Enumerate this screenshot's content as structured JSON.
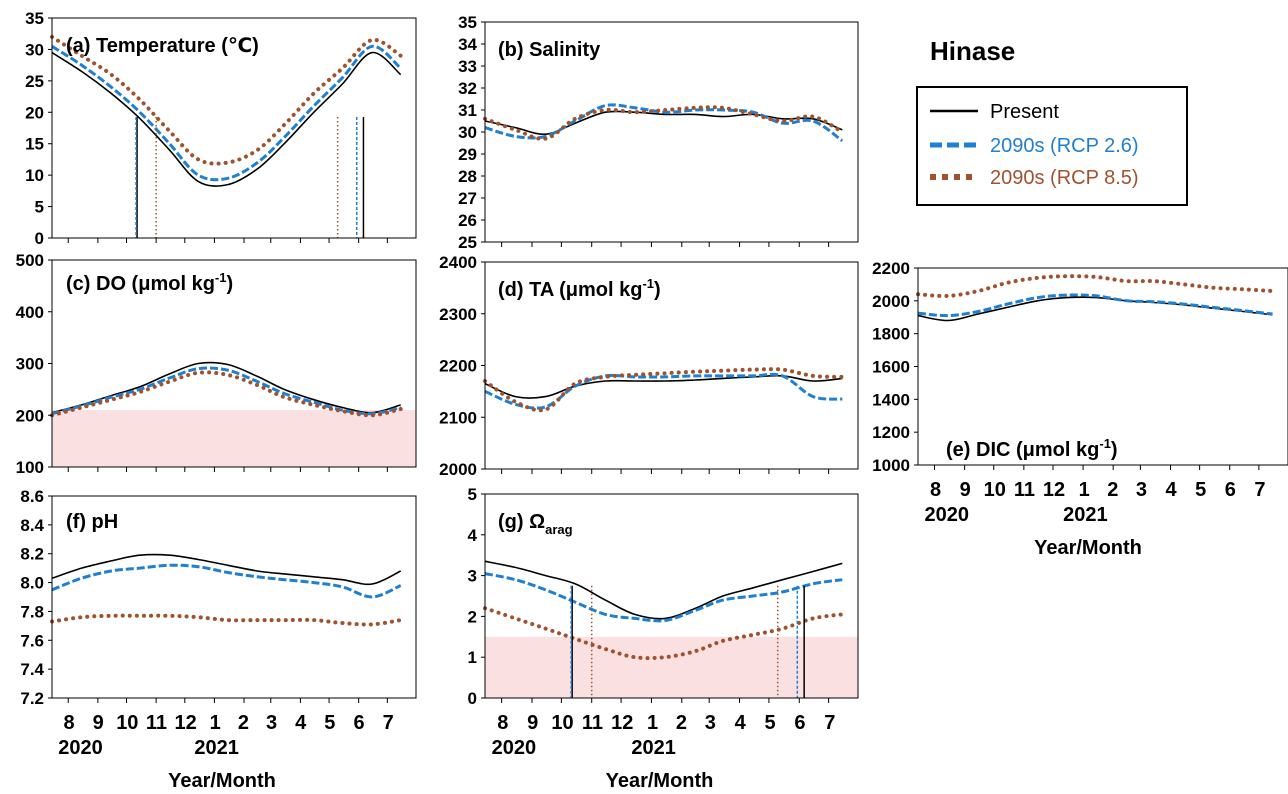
{
  "site_title": "Hinase",
  "legend": [
    {
      "label": "Present",
      "color": "#000000",
      "style": "solid"
    },
    {
      "label": "2090s (RCP 2.6)",
      "color": "#1f7fd0",
      "style": "dashed"
    },
    {
      "label": "2090s (RCP 8.5)",
      "color": "#a0522d",
      "style": "dotted"
    }
  ],
  "colors": {
    "present": "#000000",
    "rcp26": "#1f7fd0",
    "rcp85": "#a0522d",
    "threshold_fill": "#fbe0e2"
  },
  "x_axis": {
    "month_ticks": [
      "8",
      "9",
      "10",
      "11",
      "12",
      "1",
      "2",
      "3",
      "4",
      "5",
      "6",
      "7"
    ],
    "year_labels": [
      "2020",
      "2021"
    ],
    "xlabel": "Year/Month"
  },
  "chart_data": [
    {
      "id": "a",
      "type": "line",
      "title": "(a) Temperature (℃)",
      "ylim": [
        0,
        35
      ],
      "yticks": [
        0,
        5,
        10,
        15,
        20,
        25,
        30,
        35
      ],
      "x": [
        "2020-07-15",
        "2020-08-15",
        "2020-09-15",
        "2020-10-15",
        "2020-11-15",
        "2020-12-15",
        "2021-01-15",
        "2021-02-15",
        "2021-03-15",
        "2021-04-15",
        "2021-05-15",
        "2021-06-15",
        "2021-07-15"
      ],
      "series": [
        {
          "name": "Present",
          "values": [
            29.5,
            26.5,
            23,
            19,
            14,
            9,
            8.5,
            11,
            15,
            20,
            24.5,
            29.5,
            26
          ]
        },
        {
          "name": "2090s (RCP 2.6)",
          "values": [
            30.5,
            27.5,
            24,
            20,
            15,
            10,
            9.5,
            12,
            16,
            21,
            25.5,
            30.5,
            27
          ]
        },
        {
          "name": "2090s (RCP 8.5)",
          "values": [
            32,
            29,
            26,
            22,
            17,
            12.5,
            12,
            14,
            18,
            23,
            27,
            31.5,
            29
          ]
        }
      ],
      "vlines": [
        {
          "series": "Present",
          "date": "2020-10-12"
        },
        {
          "series": "2090s (RCP 2.6)",
          "date": "2020-10-11"
        },
        {
          "series": "2090s (RCP 8.5)",
          "date": "2020-11-01"
        },
        {
          "series": "2090s (RCP 8.5)",
          "date": "2021-05-10"
        },
        {
          "series": "2090s (RCP 2.6)",
          "date": "2021-05-30"
        },
        {
          "series": "Present",
          "date": "2021-06-06"
        }
      ]
    },
    {
      "id": "b",
      "type": "line",
      "title": "(b) Salinity",
      "ylim": [
        25,
        35
      ],
      "yticks": [
        25,
        26,
        27,
        28,
        29,
        30,
        31,
        32,
        33,
        34,
        35
      ],
      "x": [
        "2020-07-15",
        "2020-08-15",
        "2020-09-15",
        "2020-10-15",
        "2020-11-15",
        "2020-12-15",
        "2021-01-15",
        "2021-02-15",
        "2021-03-15",
        "2021-04-15",
        "2021-05-15",
        "2021-06-15",
        "2021-07-15"
      ],
      "series": [
        {
          "name": "Present",
          "values": [
            30.5,
            30.2,
            29.9,
            30.4,
            30.9,
            30.9,
            30.8,
            30.8,
            30.7,
            30.8,
            30.6,
            30.6,
            30.1
          ]
        },
        {
          "name": "2090s (RCP 2.6)",
          "values": [
            30.2,
            29.8,
            29.8,
            30.5,
            31.2,
            31.1,
            30.9,
            31.0,
            31.0,
            30.9,
            30.4,
            30.5,
            29.6
          ]
        },
        {
          "name": "2090s (RCP 8.5)",
          "values": [
            30.6,
            30.1,
            29.7,
            30.6,
            31.0,
            30.9,
            31.0,
            31.1,
            31.1,
            30.8,
            30.5,
            30.7,
            30.0
          ]
        }
      ]
    },
    {
      "id": "c",
      "type": "line",
      "title": "(c) DO (μmol kg-1)",
      "title_main": "(c) DO (μmol kg",
      "title_sup": "-1",
      "title_end": ")",
      "ylim": [
        100,
        500
      ],
      "yticks": [
        100,
        200,
        300,
        400,
        500
      ],
      "threshold": 210,
      "x": [
        "2020-07-15",
        "2020-08-15",
        "2020-09-15",
        "2020-10-15",
        "2020-11-15",
        "2020-12-15",
        "2021-01-15",
        "2021-02-15",
        "2021-03-15",
        "2021-04-15",
        "2021-05-15",
        "2021-06-15",
        "2021-07-15"
      ],
      "series": [
        {
          "name": "Present",
          "values": [
            205,
            220,
            238,
            255,
            280,
            300,
            298,
            275,
            250,
            230,
            215,
            205,
            220
          ]
        },
        {
          "name": "2090s (RCP 2.6)",
          "values": [
            203,
            218,
            235,
            250,
            272,
            290,
            287,
            265,
            242,
            225,
            210,
            203,
            215
          ]
        },
        {
          "name": "2090s (RCP 8.5)",
          "values": [
            200,
            215,
            230,
            245,
            265,
            282,
            278,
            258,
            235,
            220,
            208,
            200,
            212
          ]
        }
      ]
    },
    {
      "id": "d",
      "type": "line",
      "title": "(d) TA (μmol kg-1)",
      "title_main": "(d) TA (μmol kg",
      "title_sup": "-1",
      "title_end": ")",
      "ylim": [
        2000,
        2400
      ],
      "yticks": [
        2000,
        2100,
        2200,
        2300,
        2400
      ],
      "x": [
        "2020-07-15",
        "2020-08-15",
        "2020-09-15",
        "2020-10-15",
        "2020-11-15",
        "2020-12-15",
        "2021-01-15",
        "2021-02-15",
        "2021-03-15",
        "2021-04-15",
        "2021-05-15",
        "2021-06-15",
        "2021-07-15"
      ],
      "series": [
        {
          "name": "Present",
          "values": [
            2165,
            2140,
            2140,
            2160,
            2170,
            2170,
            2170,
            2172,
            2175,
            2178,
            2180,
            2170,
            2175
          ]
        },
        {
          "name": "2090s (RCP 2.6)",
          "values": [
            2150,
            2125,
            2120,
            2160,
            2180,
            2178,
            2178,
            2180,
            2180,
            2180,
            2180,
            2140,
            2135
          ]
        },
        {
          "name": "2090s (RCP 8.5)",
          "values": [
            2170,
            2130,
            2115,
            2165,
            2178,
            2182,
            2185,
            2188,
            2190,
            2192,
            2192,
            2180,
            2178
          ]
        }
      ]
    },
    {
      "id": "e",
      "type": "line",
      "title": "(e) DIC (μmol kg-1)",
      "title_main": "(e) DIC (μmol kg",
      "title_sup": "-1",
      "title_end": ")",
      "ylim": [
        1000,
        2200
      ],
      "yticks": [
        1000,
        1200,
        1400,
        1600,
        1800,
        2000,
        2200
      ],
      "x": [
        "2020-07-15",
        "2020-08-15",
        "2020-09-15",
        "2020-10-15",
        "2020-11-15",
        "2020-12-15",
        "2021-01-15",
        "2021-02-15",
        "2021-03-15",
        "2021-04-15",
        "2021-05-15",
        "2021-06-15",
        "2021-07-15"
      ],
      "series": [
        {
          "name": "Present",
          "values": [
            1910,
            1880,
            1920,
            1960,
            2000,
            2020,
            2020,
            2000,
            1990,
            1975,
            1955,
            1935,
            1915
          ]
        },
        {
          "name": "2090s (RCP 2.6)",
          "values": [
            1925,
            1910,
            1935,
            1980,
            2020,
            2035,
            2030,
            2000,
            1995,
            1980,
            1960,
            1940,
            1920
          ]
        },
        {
          "name": "2090s (RCP 8.5)",
          "values": [
            2040,
            2030,
            2060,
            2110,
            2140,
            2150,
            2145,
            2120,
            2120,
            2100,
            2080,
            2070,
            2060
          ]
        }
      ]
    },
    {
      "id": "f",
      "type": "line",
      "title": "(f) pH",
      "ylim": [
        7.2,
        8.6
      ],
      "yticks": [
        7.2,
        7.4,
        7.6,
        7.8,
        8.0,
        8.2,
        8.4,
        8.6
      ],
      "x": [
        "2020-07-15",
        "2020-08-15",
        "2020-09-15",
        "2020-10-15",
        "2020-11-15",
        "2020-12-15",
        "2021-01-15",
        "2021-02-15",
        "2021-03-15",
        "2021-04-15",
        "2021-05-15",
        "2021-06-15",
        "2021-07-15"
      ],
      "series": [
        {
          "name": "Present",
          "values": [
            8.03,
            8.1,
            8.15,
            8.19,
            8.19,
            8.16,
            8.12,
            8.08,
            8.06,
            8.04,
            8.02,
            7.99,
            8.08
          ]
        },
        {
          "name": "2090s (RCP 2.6)",
          "values": [
            7.95,
            8.03,
            8.08,
            8.1,
            8.12,
            8.11,
            8.07,
            8.04,
            8.02,
            8.0,
            7.97,
            7.9,
            7.98
          ]
        },
        {
          "name": "2090s (RCP 8.5)",
          "values": [
            7.73,
            7.76,
            7.77,
            7.77,
            7.77,
            7.76,
            7.74,
            7.74,
            7.74,
            7.74,
            7.72,
            7.71,
            7.74
          ]
        }
      ]
    },
    {
      "id": "g",
      "type": "line",
      "title": "(g) Ωarag",
      "title_main": "(g) Ω",
      "title_sub": "arag",
      "ylim": [
        0,
        5
      ],
      "yticks": [
        0,
        1,
        2,
        3,
        4,
        5
      ],
      "threshold": 1.5,
      "x": [
        "2020-07-15",
        "2020-08-15",
        "2020-09-15",
        "2020-10-15",
        "2020-11-15",
        "2020-12-15",
        "2021-01-15",
        "2021-02-15",
        "2021-03-15",
        "2021-04-15",
        "2021-05-15",
        "2021-06-15",
        "2021-07-15"
      ],
      "series": [
        {
          "name": "Present",
          "values": [
            3.35,
            3.2,
            3.0,
            2.8,
            2.4,
            2.05,
            1.95,
            2.2,
            2.5,
            2.7,
            2.9,
            3.1,
            3.3
          ]
        },
        {
          "name": "2090s (RCP 2.6)",
          "values": [
            3.05,
            2.9,
            2.65,
            2.35,
            2.05,
            1.95,
            1.9,
            2.15,
            2.4,
            2.5,
            2.6,
            2.8,
            2.9
          ]
        },
        {
          "name": "2090s (RCP 8.5)",
          "values": [
            2.2,
            1.95,
            1.7,
            1.45,
            1.2,
            1.0,
            1.0,
            1.15,
            1.4,
            1.55,
            1.7,
            1.95,
            2.05
          ]
        }
      ],
      "vlines": [
        {
          "series": "Present",
          "date": "2020-10-12"
        },
        {
          "series": "2090s (RCP 2.6)",
          "date": "2020-10-11"
        },
        {
          "series": "2090s (RCP 8.5)",
          "date": "2020-11-01"
        },
        {
          "series": "2090s (RCP 8.5)",
          "date": "2021-05-10"
        },
        {
          "series": "2090s (RCP 2.6)",
          "date": "2021-05-30"
        },
        {
          "series": "Present",
          "date": "2021-06-06"
        }
      ]
    }
  ]
}
